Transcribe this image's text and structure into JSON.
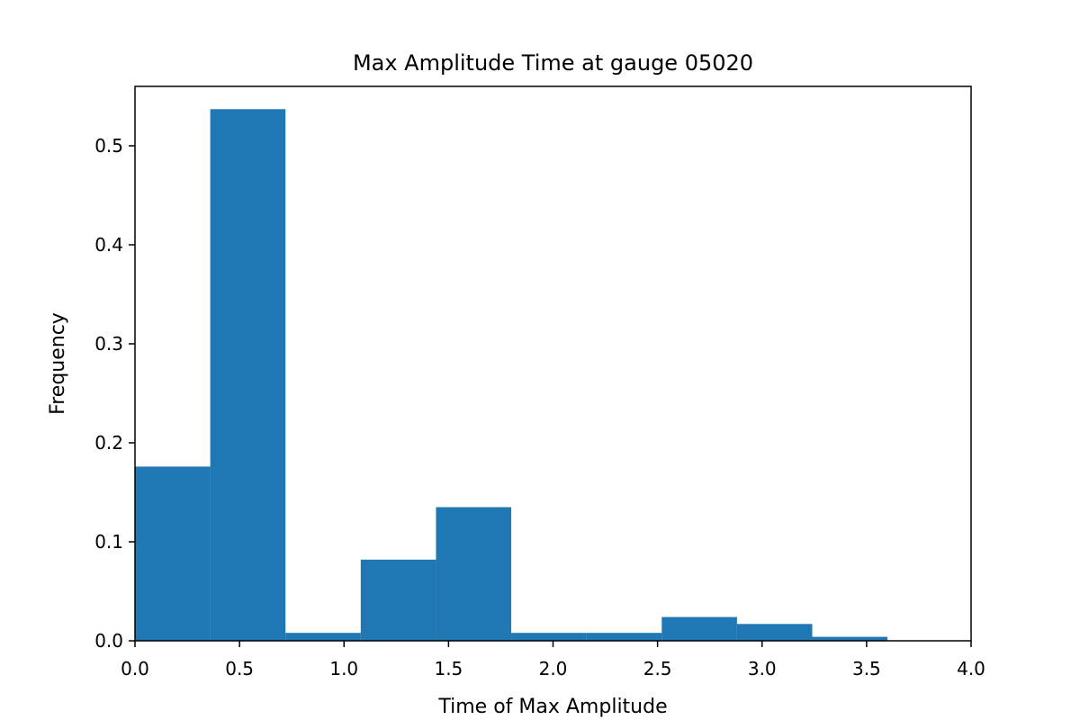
{
  "chart_data": {
    "type": "bar",
    "title": "Max Amplitude Time at gauge 05020",
    "xlabel": "Time of Max Amplitude",
    "ylabel": "Frequency",
    "xlim": [
      0.0,
      4.0
    ],
    "ylim": [
      0.0,
      0.56
    ],
    "x_ticks": [
      0.0,
      0.5,
      1.0,
      1.5,
      2.0,
      2.5,
      3.0,
      3.5,
      4.0
    ],
    "x_tick_labels": [
      "0.0",
      "0.5",
      "1.0",
      "1.5",
      "2.0",
      "2.5",
      "3.0",
      "3.5",
      "4.0"
    ],
    "y_ticks": [
      0.0,
      0.1,
      0.2,
      0.3,
      0.4,
      0.5
    ],
    "y_tick_labels": [
      "0.0",
      "0.1",
      "0.2",
      "0.3",
      "0.4",
      "0.5"
    ],
    "bin_edges": [
      0.0,
      0.36,
      0.72,
      1.08,
      1.44,
      1.8,
      2.16,
      2.52,
      2.88,
      3.24,
      3.6
    ],
    "values": [
      0.176,
      0.537,
      0.008,
      0.082,
      0.135,
      0.008,
      0.008,
      0.024,
      0.017,
      0.004
    ],
    "bar_color": "#1f77b4",
    "grid": false,
    "legend": "none"
  }
}
